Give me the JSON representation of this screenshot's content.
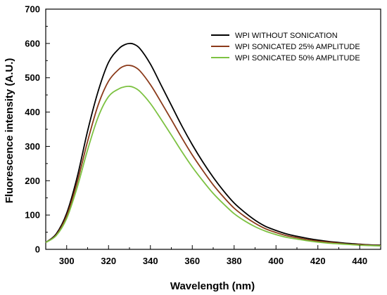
{
  "chart_data": {
    "type": "line",
    "title": "",
    "xlabel": "Wavelength (nm)",
    "ylabel": "Fluorescence intensity (A.U.)",
    "xlim": [
      290,
      450
    ],
    "ylim": [
      0,
      700
    ],
    "xticks": [
      300,
      320,
      340,
      360,
      380,
      400,
      420,
      440
    ],
    "yticks": [
      0,
      100,
      200,
      300,
      400,
      500,
      600,
      700
    ],
    "grid": false,
    "legend_position": "top-right",
    "x": [
      290,
      295,
      300,
      305,
      310,
      315,
      320,
      325,
      328,
      330,
      332,
      335,
      340,
      345,
      350,
      355,
      360,
      365,
      370,
      375,
      380,
      385,
      390,
      395,
      400,
      405,
      410,
      415,
      420,
      425,
      430,
      435,
      440,
      445,
      450
    ],
    "series": [
      {
        "name": "WPI WITHOUT SONICATION",
        "color": "#000000",
        "values": [
          20,
          45,
          105,
          210,
          345,
          460,
          545,
          585,
          597,
          600,
          598,
          585,
          540,
          480,
          420,
          360,
          305,
          255,
          210,
          170,
          135,
          108,
          85,
          67,
          55,
          45,
          38,
          32,
          27,
          23,
          20,
          17,
          15,
          13,
          12
        ]
      },
      {
        "name": "WPI SONICATED 25% AMPLITUDE",
        "color": "#8B3A1A",
        "values": [
          20,
          42,
          98,
          195,
          315,
          420,
          490,
          525,
          535,
          536,
          533,
          520,
          480,
          430,
          378,
          325,
          275,
          230,
          188,
          152,
          120,
          96,
          76,
          60,
          49,
          40,
          34,
          28,
          24,
          21,
          18,
          15,
          14,
          12,
          11
        ]
      },
      {
        "name": "WPI SONICATED 50% AMPLITUDE",
        "color": "#7DC242",
        "values": [
          20,
          40,
          90,
          180,
          290,
          385,
          445,
          468,
          474,
          475,
          472,
          460,
          425,
          380,
          333,
          285,
          240,
          200,
          163,
          132,
          104,
          83,
          66,
          53,
          43,
          35,
          30,
          25,
          21,
          18,
          16,
          14,
          12,
          11,
          10
        ]
      }
    ]
  }
}
